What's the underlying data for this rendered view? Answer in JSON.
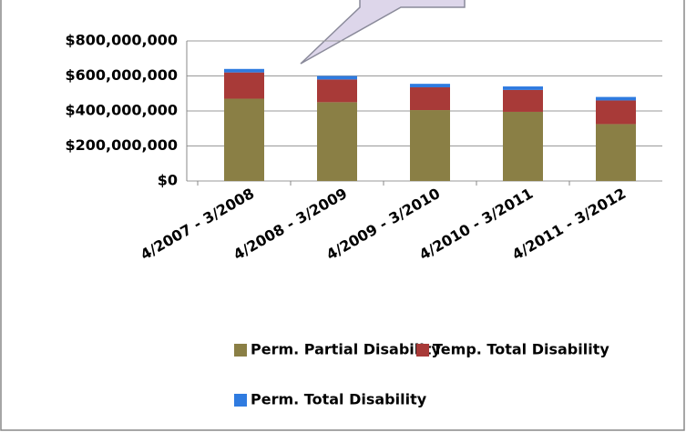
{
  "chart_data": {
    "type": "stacked_bar",
    "categories": [
      "4/2007 - 3/2008",
      "4/2008 - 3/2009",
      "4/2009 - 3/2010",
      "4/2010 - 3/2011",
      "4/2011 - 3/2012"
    ],
    "series": [
      {
        "name": "Perm. Partial Disability",
        "color": "#8a7f45",
        "values": [
          470000000,
          450000000,
          405000000,
          395000000,
          325000000
        ]
      },
      {
        "name": "Temp. Total Disability",
        "color": "#a83a38",
        "values": [
          150000000,
          130000000,
          130000000,
          125000000,
          135000000
        ]
      },
      {
        "name": "Perm. Total Disability",
        "color": "#2f7be0",
        "values": [
          20000000,
          20000000,
          20000000,
          20000000,
          20000000
        ]
      }
    ],
    "ylim": [
      0,
      800000000
    ],
    "yticks": [
      {
        "value": 0,
        "label": "$0"
      },
      {
        "value": 200000000,
        "label": "$200,000,000"
      },
      {
        "value": 400000000,
        "label": "$400,000,000"
      },
      {
        "value": 600000000,
        "label": "$600,000,000"
      },
      {
        "value": 800000000,
        "label": "$800,000,000"
      }
    ],
    "grid": true,
    "legend": "bottom"
  }
}
